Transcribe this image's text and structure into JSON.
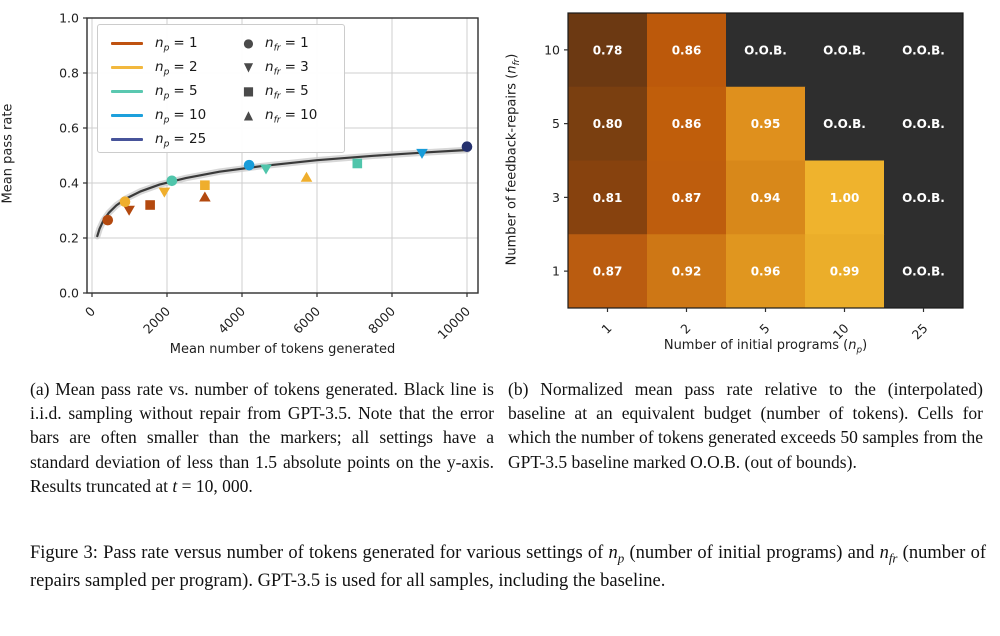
{
  "figure": {
    "caption_a_segments": [
      {
        "t": "(a) Mean pass rate vs. number of tokens generated. Black line is i.i.d. sampling without repair from GPT-3.5. Note that the error bars are often smaller than the markers; all settings have a standard deviation of less than 1.5 absolute points on the y-axis. Results truncated at "
      },
      {
        "t": "t",
        "i": true
      },
      {
        "t": " = 10, 000."
      }
    ],
    "caption_b_segments": [
      {
        "t": "(b) Normalized mean pass rate relative to the (interpolated) baseline at an equivalent budget (number of tokens). Cells for which the number of tokens generated exceeds 50 samples from the GPT-3.5 baseline marked O.O.B. (out of bounds)."
      }
    ],
    "main_caption_segments": [
      {
        "t": "Figure 3: Pass rate versus number of tokens generated for various settings of "
      },
      {
        "t": "n",
        "i": true
      },
      {
        "t": "p",
        "sub": true
      },
      {
        "t": " (number of initial programs) and "
      },
      {
        "t": "n",
        "i": true
      },
      {
        "t": "fr",
        "sub": true
      },
      {
        "t": " (number of repairs sampled per program). GPT-3.5 is used for all samples, including the baseline."
      }
    ]
  },
  "chart_data": [
    {
      "type": "scatter",
      "xlabel": "Mean number of tokens generated",
      "ylabel": "Mean pass rate",
      "xlim": [
        0,
        10400
      ],
      "ylim": [
        0.0,
        1.0
      ],
      "xticks": [
        0,
        2000,
        4000,
        6000,
        8000,
        10000
      ],
      "yticks": [
        0.0,
        0.2,
        0.4,
        0.6,
        0.8,
        1.0
      ],
      "grid": true,
      "legend_position": "upper left",
      "legend": {
        "var": "n",
        "sub_np": "p",
        "sub_nfr": "fr",
        "np_entries": [
          {
            "eq": "= 1",
            "color": "#bf5210"
          },
          {
            "eq": "= 2",
            "color": "#f2b83e"
          },
          {
            "eq": "= 5",
            "color": "#5ac8b0"
          },
          {
            "eq": "= 10",
            "color": "#1da0dc"
          },
          {
            "eq": "= 25",
            "color": "#47549a"
          }
        ],
        "nfr_entries": [
          {
            "eq": "= 1",
            "glyph": "●",
            "marker": "circle"
          },
          {
            "eq": "= 3",
            "glyph": "▼",
            "marker": "triangle-down"
          },
          {
            "eq": "= 5",
            "glyph": "■",
            "marker": "square"
          },
          {
            "eq": "= 10",
            "glyph": "▲",
            "marker": "triangle-up"
          }
        ]
      },
      "baseline_curve": {
        "label": "i.i.d. sampling without repair (GPT-3.5)",
        "color": "#3a3a3a",
        "band_color": "#c9c9c9",
        "x": [
          140,
          200,
          300,
          450,
          650,
          900,
          1300,
          1800,
          2500,
          3400,
          4500,
          6000,
          7500,
          9000,
          10000
        ],
        "y": [
          0.207,
          0.233,
          0.263,
          0.292,
          0.319,
          0.343,
          0.37,
          0.394,
          0.418,
          0.441,
          0.461,
          0.483,
          0.499,
          0.512,
          0.52
        ]
      },
      "series": [
        {
          "np": "1",
          "color": "#b3490f",
          "points": [
            {
              "nfr": "1",
              "marker": "circle",
              "x": 420,
              "y": 0.265
            },
            {
              "nfr": "3",
              "marker": "triangle-down",
              "x": 990,
              "y": 0.302,
              "err": 0.013
            },
            {
              "nfr": "5",
              "marker": "square",
              "x": 1550,
              "y": 0.32
            },
            {
              "nfr": "10",
              "marker": "triangle-up",
              "x": 3010,
              "y": 0.348,
              "err": 0.013
            }
          ]
        },
        {
          "np": "2",
          "color": "#efae2c",
          "points": [
            {
              "nfr": "1",
              "marker": "circle",
              "x": 880,
              "y": 0.332,
              "err": 0.01
            },
            {
              "nfr": "3",
              "marker": "triangle-down",
              "x": 1930,
              "y": 0.368,
              "err": 0.013
            },
            {
              "nfr": "5",
              "marker": "square",
              "x": 3010,
              "y": 0.392
            },
            {
              "nfr": "10",
              "marker": "triangle-up",
              "x": 5720,
              "y": 0.42,
              "err": 0.014
            }
          ]
        },
        {
          "np": "5",
          "color": "#50c5ab",
          "points": [
            {
              "nfr": "1",
              "marker": "circle",
              "x": 2130,
              "y": 0.408
            },
            {
              "nfr": "3",
              "marker": "triangle-down",
              "x": 4640,
              "y": 0.452,
              "err": 0.013
            },
            {
              "nfr": "5",
              "marker": "square",
              "x": 7075,
              "y": 0.471
            }
          ]
        },
        {
          "np": "10",
          "color": "#189cd9",
          "points": [
            {
              "nfr": "1",
              "marker": "circle",
              "x": 4190,
              "y": 0.465
            },
            {
              "nfr": "3",
              "marker": "triangle-down",
              "x": 8800,
              "y": 0.509,
              "err": 0.012
            }
          ]
        },
        {
          "np": "25",
          "color": "#25316e",
          "points": [
            {
              "nfr": "1",
              "marker": "circle",
              "x": 10000,
              "y": 0.532
            }
          ]
        }
      ]
    },
    {
      "type": "heatmap",
      "xlabel_segments": [
        {
          "t": "Number of initial programs ("
        },
        {
          "t": "n",
          "i": true
        },
        {
          "t": "p",
          "sub": true
        },
        {
          "t": ")"
        }
      ],
      "ylabel_segments": [
        {
          "t": "Number of feedback-repairs ("
        },
        {
          "t": "n",
          "i": true
        },
        {
          "t": "fr",
          "sub": true
        },
        {
          "t": ")"
        }
      ],
      "columns": [
        "1",
        "2",
        "5",
        "10",
        "25"
      ],
      "rows": [
        "10",
        "5",
        "3",
        "1"
      ],
      "oob": {
        "label": "O.O.B.",
        "color": "#2e2e2e"
      },
      "cells": [
        [
          {
            "label": "0.78",
            "color": "#6c3912"
          },
          {
            "label": "0.86",
            "color": "#bc590b"
          },
          {
            "label": "O.O.B.",
            "color": "#2e2e2e"
          },
          {
            "label": "O.O.B.",
            "color": "#2e2e2e"
          },
          {
            "label": "O.O.B.",
            "color": "#2e2e2e"
          }
        ],
        [
          {
            "label": "0.80",
            "color": "#7a3f10"
          },
          {
            "label": "0.86",
            "color": "#c05e0b"
          },
          {
            "label": "0.95",
            "color": "#df901d"
          },
          {
            "label": "O.O.B.",
            "color": "#2e2e2e"
          },
          {
            "label": "O.O.B.",
            "color": "#2e2e2e"
          }
        ],
        [
          {
            "label": "0.81",
            "color": "#87420e"
          },
          {
            "label": "0.87",
            "color": "#be5d0d"
          },
          {
            "label": "0.94",
            "color": "#d8881a"
          },
          {
            "label": "1.00",
            "color": "#efb32d"
          },
          {
            "label": "O.O.B.",
            "color": "#2e2e2e"
          }
        ],
        [
          {
            "label": "0.87",
            "color": "#ba5c10"
          },
          {
            "label": "0.92",
            "color": "#ce7715"
          },
          {
            "label": "0.96",
            "color": "#e0961f"
          },
          {
            "label": "0.99",
            "color": "#ebae2a"
          },
          {
            "label": "O.O.B.",
            "color": "#2e2e2e"
          }
        ]
      ]
    }
  ]
}
